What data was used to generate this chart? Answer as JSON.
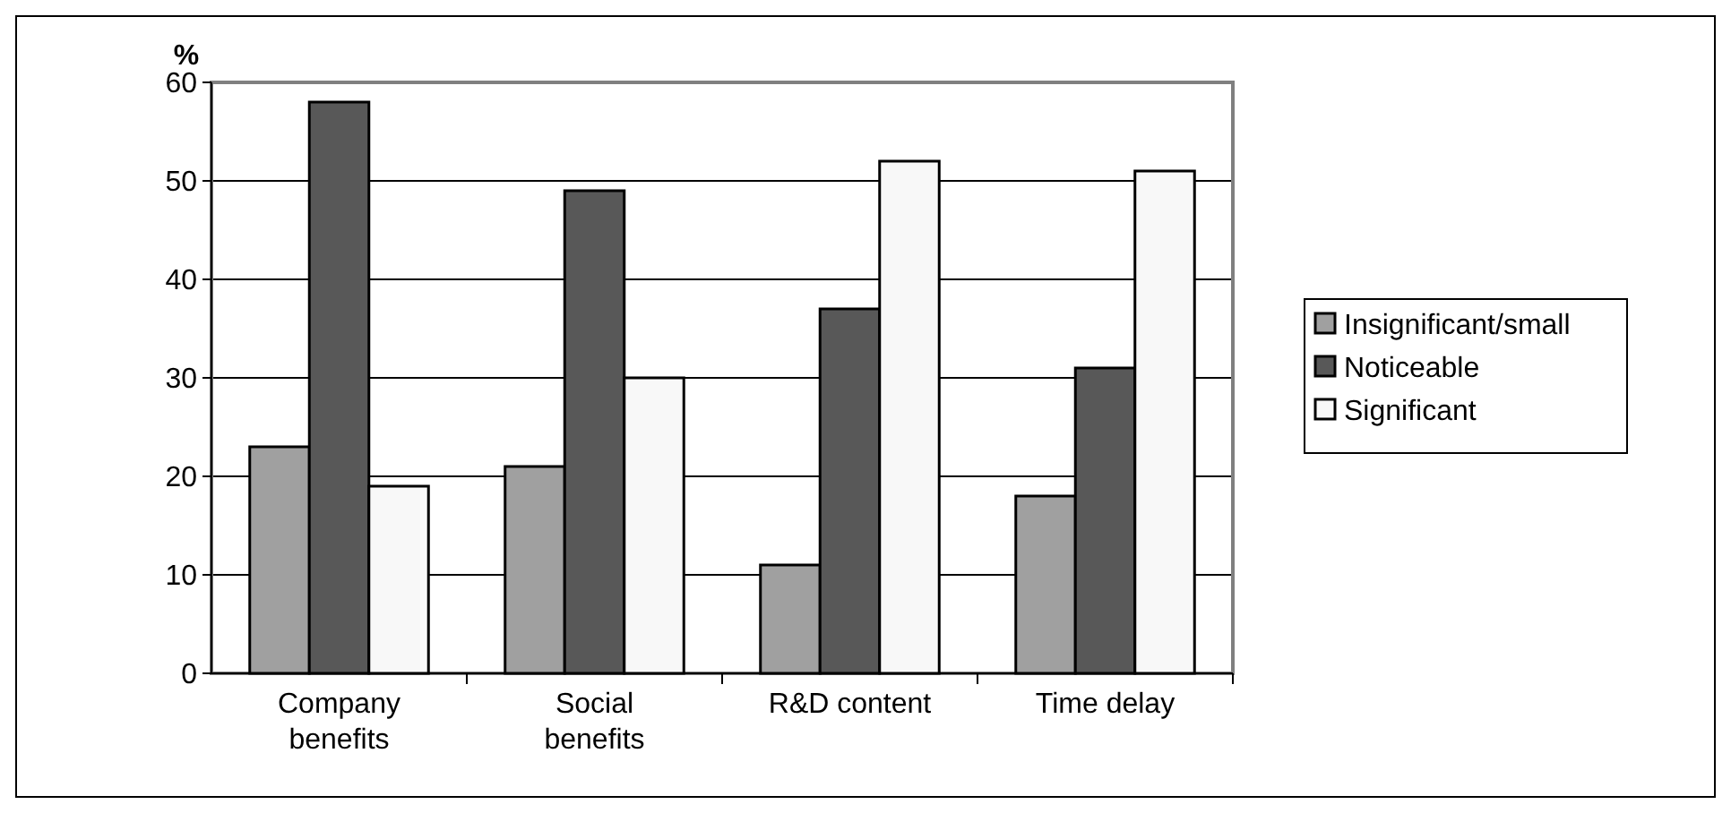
{
  "chart_data": {
    "type": "bar",
    "ylabel": "%",
    "categories": [
      "Company benefits",
      "Social benefits",
      "R&D content",
      "Time delay"
    ],
    "series": [
      {
        "name": "Insignificant/small",
        "color": "#a0a0a0",
        "values": [
          23,
          21,
          11,
          18
        ]
      },
      {
        "name": "Noticeable",
        "color": "#585858",
        "values": [
          58,
          49,
          37,
          31
        ]
      },
      {
        "name": "Significant",
        "color": "#f8f8f8",
        "values": [
          19,
          30,
          52,
          51
        ]
      }
    ],
    "ylim": [
      0,
      60
    ],
    "yticks": [
      0,
      10,
      20,
      30,
      40,
      50,
      60
    ],
    "grid": "y",
    "legend": "right"
  }
}
